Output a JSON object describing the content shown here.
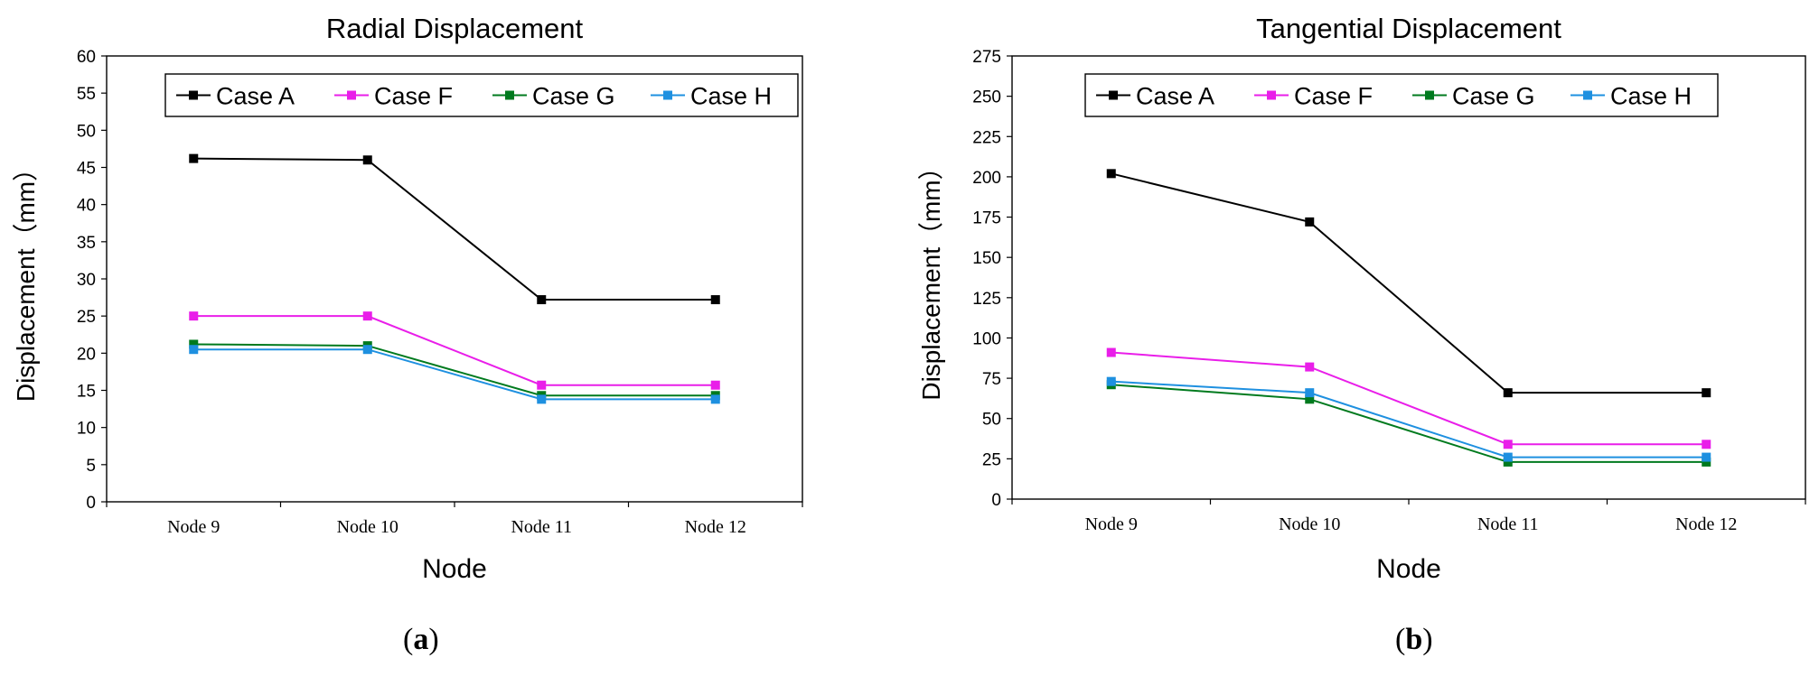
{
  "panels": [
    {
      "label_open": "(",
      "label_letter": "a",
      "label_close": ")"
    },
    {
      "label_open": "(",
      "label_letter": "b",
      "label_close": ")"
    }
  ],
  "series_colors": {
    "Case A": "#000000",
    "Case F": "#e91ee9",
    "Case G": "#007a1e",
    "Case H": "#1e90e0"
  },
  "chart_data": [
    {
      "type": "line",
      "title": "Radial Displacement",
      "xlabel": "Node",
      "ylabel": "Displacement（mm）",
      "categories": [
        "Node 9",
        "Node 10",
        "Node 11",
        "Node 12"
      ],
      "ylim": [
        0,
        60
      ],
      "yticks": [
        0,
        5,
        10,
        15,
        20,
        25,
        30,
        35,
        40,
        45,
        50,
        55,
        60
      ],
      "legend": "top, inside plot",
      "series": [
        {
          "name": "Case A",
          "values": [
            46.2,
            46.0,
            27.2,
            27.2
          ]
        },
        {
          "name": "Case F",
          "values": [
            25.0,
            25.0,
            15.7,
            15.7
          ]
        },
        {
          "name": "Case G",
          "values": [
            21.2,
            21.0,
            14.3,
            14.3
          ]
        },
        {
          "name": "Case H",
          "values": [
            20.5,
            20.5,
            13.8,
            13.8
          ]
        }
      ]
    },
    {
      "type": "line",
      "title": "Tangential  Displacement",
      "xlabel": "Node",
      "ylabel": "Displacement（mm）",
      "categories": [
        "Node 9",
        "Node 10",
        "Node 11",
        "Node 12"
      ],
      "ylim": [
        0,
        275
      ],
      "yticks": [
        0,
        25,
        50,
        75,
        100,
        125,
        150,
        175,
        200,
        225,
        250,
        275
      ],
      "legend": "top, inside plot",
      "series": [
        {
          "name": "Case A",
          "values": [
            202,
            172,
            66,
            66
          ]
        },
        {
          "name": "Case F",
          "values": [
            91,
            82,
            34,
            34
          ]
        },
        {
          "name": "Case G",
          "values": [
            71,
            62,
            23,
            23
          ]
        },
        {
          "name": "Case H",
          "values": [
            73,
            66,
            26,
            26
          ]
        }
      ]
    }
  ]
}
